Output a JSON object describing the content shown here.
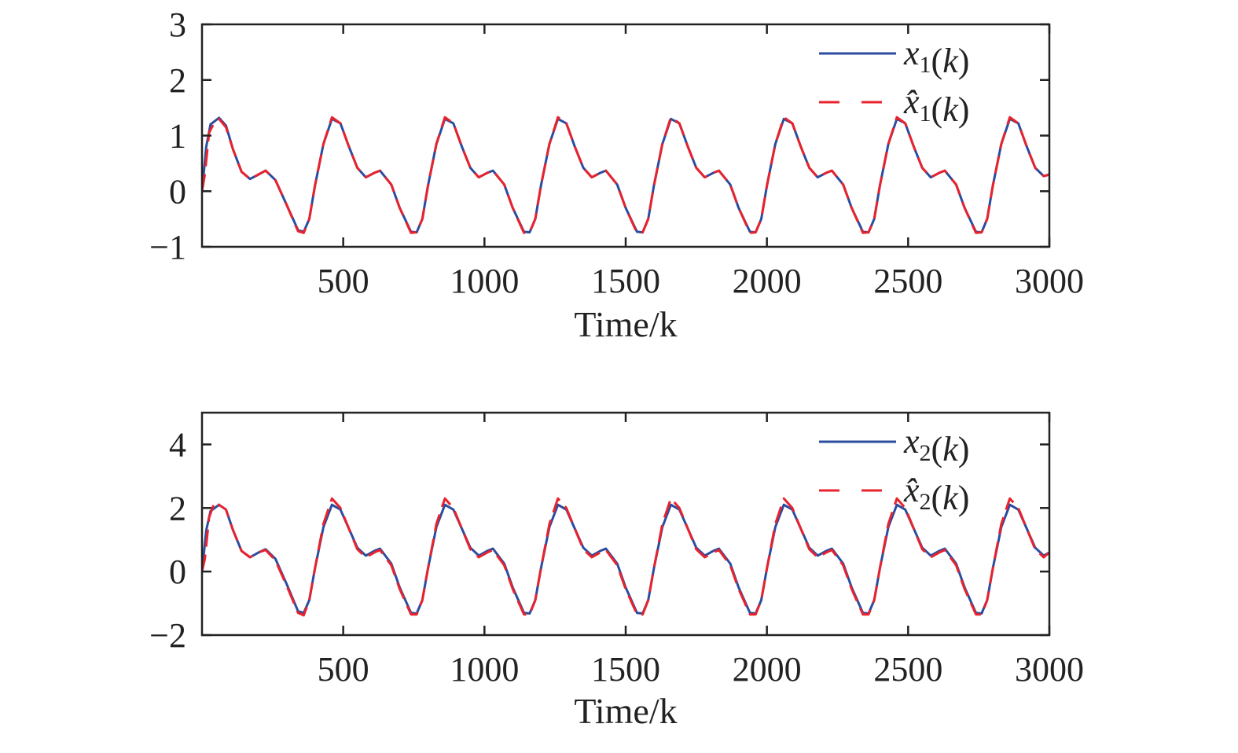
{
  "colors": {
    "true_series": "#2b4c9f",
    "estimate_series": "#e8232d",
    "axes": "#222222"
  },
  "chart_data": [
    {
      "type": "line",
      "xlabel": "Time/k",
      "ylabel": "",
      "xlim": [
        0,
        3000
      ],
      "ylim": [
        -1,
        3
      ],
      "xticks": [
        500,
        1000,
        1500,
        2000,
        2500,
        3000
      ],
      "xtick_labels": [
        "500",
        "1000",
        "1500",
        "2000",
        "2500",
        "3000"
      ],
      "yticks": [
        -1,
        0,
        1,
        2,
        3
      ],
      "ytick_labels": [
        "−1",
        "0",
        "1",
        "2",
        "3"
      ],
      "grid": false,
      "legend_position": "top-right",
      "series": [
        {
          "name": "x1(k)",
          "legend_var": "x",
          "legend_sub": "1",
          "legend_arg": "(k)",
          "style": "solid",
          "color": "#2b4c9f",
          "x": [
            0,
            15,
            30,
            60,
            85,
            110,
            140,
            170,
            200,
            225,
            260,
            300,
            340,
            360,
            380,
            400,
            430,
            460,
            490,
            520,
            550,
            580,
            610,
            630,
            670,
            700,
            740,
            760,
            780,
            800,
            830,
            860,
            890,
            920,
            950,
            980,
            1010,
            1030,
            1070,
            1100,
            1140,
            1160,
            1180,
            1200,
            1230,
            1260,
            1290,
            1320,
            1350,
            1380,
            1410,
            1430,
            1470,
            1500,
            1540,
            1560,
            1580,
            1600,
            1630,
            1660,
            1690,
            1720,
            1750,
            1780,
            1810,
            1830,
            1870,
            1900,
            1940,
            1960,
            1980,
            2000,
            2030,
            2060,
            2090,
            2120,
            2150,
            2180,
            2210,
            2230,
            2270,
            2300,
            2340,
            2360,
            2380,
            2400,
            2430,
            2460,
            2490,
            2520,
            2550,
            2580,
            2610,
            2630,
            2670,
            2700,
            2740,
            2760,
            2780,
            2800,
            2830,
            2860,
            2890,
            2920,
            2950,
            2980,
            3000
          ],
          "y": [
            0.0,
            0.8,
            1.2,
            1.32,
            1.18,
            0.75,
            0.35,
            0.22,
            0.3,
            0.37,
            0.2,
            -0.25,
            -0.7,
            -0.73,
            -0.5,
            0.1,
            0.85,
            1.3,
            1.22,
            0.8,
            0.42,
            0.25,
            0.33,
            0.37,
            0.12,
            -0.3,
            -0.73,
            -0.74,
            -0.5,
            0.1,
            0.85,
            1.3,
            1.22,
            0.8,
            0.42,
            0.25,
            0.33,
            0.37,
            0.12,
            -0.3,
            -0.73,
            -0.74,
            -0.5,
            0.1,
            0.85,
            1.3,
            1.22,
            0.8,
            0.42,
            0.25,
            0.33,
            0.37,
            0.12,
            -0.3,
            -0.73,
            -0.74,
            -0.5,
            0.1,
            0.85,
            1.3,
            1.22,
            0.8,
            0.42,
            0.25,
            0.33,
            0.37,
            0.12,
            -0.3,
            -0.73,
            -0.74,
            -0.5,
            0.1,
            0.85,
            1.3,
            1.22,
            0.8,
            0.42,
            0.25,
            0.33,
            0.37,
            0.12,
            -0.3,
            -0.73,
            -0.74,
            -0.5,
            0.1,
            0.85,
            1.3,
            1.22,
            0.8,
            0.42,
            0.25,
            0.33,
            0.37,
            0.12,
            -0.3,
            -0.73,
            -0.74,
            -0.5,
            0.1,
            0.85,
            1.3,
            1.22,
            0.8,
            0.42,
            0.27,
            0.3
          ]
        },
        {
          "name": "x̂1(k)",
          "legend_var": "x̂",
          "legend_sub": "1",
          "legend_arg": "(k)",
          "style": "dashed",
          "color": "#e8232d",
          "x": [
            0,
            10,
            25,
            45,
            60,
            85,
            110,
            140,
            170,
            200,
            225,
            260,
            300,
            340,
            360,
            380,
            400,
            430,
            460,
            490,
            520,
            550,
            580,
            610,
            630,
            670,
            700,
            740,
            760,
            780,
            800,
            830,
            860,
            890,
            920,
            950,
            980,
            1010,
            1030,
            1070,
            1100,
            1140,
            1160,
            1180,
            1200,
            1230,
            1260,
            1290,
            1320,
            1350,
            1380,
            1410,
            1430,
            1470,
            1500,
            1540,
            1560,
            1580,
            1600,
            1630,
            1660,
            1690,
            1720,
            1750,
            1780,
            1810,
            1830,
            1870,
            1900,
            1940,
            1960,
            1980,
            2000,
            2030,
            2060,
            2090,
            2120,
            2150,
            2180,
            2210,
            2230,
            2270,
            2300,
            2340,
            2360,
            2380,
            2400,
            2430,
            2460,
            2490,
            2520,
            2550,
            2580,
            2610,
            2630,
            2670,
            2700,
            2740,
            2760,
            2780,
            2800,
            2830,
            2860,
            2890,
            2920,
            2950,
            2980,
            3000
          ],
          "y": [
            0.0,
            0.3,
            1.05,
            1.25,
            1.3,
            1.15,
            0.75,
            0.35,
            0.22,
            0.3,
            0.37,
            0.2,
            -0.25,
            -0.72,
            -0.75,
            -0.5,
            0.1,
            0.85,
            1.33,
            1.22,
            0.8,
            0.42,
            0.25,
            0.33,
            0.37,
            0.12,
            -0.3,
            -0.75,
            -0.74,
            -0.5,
            0.1,
            0.85,
            1.33,
            1.22,
            0.8,
            0.42,
            0.25,
            0.33,
            0.37,
            0.12,
            -0.3,
            -0.75,
            -0.74,
            -0.5,
            0.1,
            0.85,
            1.33,
            1.22,
            0.8,
            0.42,
            0.25,
            0.33,
            0.37,
            0.12,
            -0.3,
            -0.75,
            -0.74,
            -0.5,
            0.1,
            0.85,
            1.33,
            1.22,
            0.8,
            0.42,
            0.25,
            0.33,
            0.37,
            0.12,
            -0.3,
            -0.75,
            -0.74,
            -0.5,
            0.1,
            0.85,
            1.33,
            1.22,
            0.8,
            0.42,
            0.25,
            0.33,
            0.37,
            0.12,
            -0.3,
            -0.75,
            -0.74,
            -0.5,
            0.1,
            0.85,
            1.33,
            1.22,
            0.8,
            0.42,
            0.25,
            0.33,
            0.37,
            0.12,
            -0.3,
            -0.75,
            -0.74,
            -0.5,
            0.1,
            0.85,
            1.33,
            1.22,
            0.8,
            0.42,
            0.27,
            0.3
          ]
        }
      ]
    },
    {
      "type": "line",
      "xlabel": "Time/k",
      "ylabel": "",
      "xlim": [
        0,
        3000
      ],
      "ylim": [
        -2,
        5
      ],
      "xticks": [
        500,
        1000,
        1500,
        2000,
        2500,
        3000
      ],
      "xtick_labels": [
        "500",
        "1000",
        "1500",
        "2000",
        "2500",
        "3000"
      ],
      "yticks": [
        -2,
        0,
        2,
        4
      ],
      "ytick_labels": [
        "−2",
        "0",
        "2",
        "4"
      ],
      "grid": false,
      "legend_position": "top-right",
      "series": [
        {
          "name": "x2(k)",
          "legend_var": "x",
          "legend_sub": "2",
          "legend_arg": "(k)",
          "style": "solid",
          "color": "#2b4c9f",
          "x": [
            0,
            15,
            30,
            60,
            85,
            110,
            140,
            170,
            200,
            225,
            260,
            300,
            340,
            360,
            380,
            400,
            430,
            460,
            490,
            520,
            550,
            580,
            610,
            630,
            670,
            700,
            740,
            760,
            780,
            800,
            830,
            860,
            890,
            920,
            950,
            980,
            1010,
            1030,
            1070,
            1100,
            1140,
            1160,
            1180,
            1200,
            1230,
            1260,
            1290,
            1320,
            1350,
            1380,
            1410,
            1430,
            1470,
            1500,
            1540,
            1560,
            1580,
            1600,
            1630,
            1660,
            1690,
            1720,
            1750,
            1780,
            1810,
            1830,
            1870,
            1900,
            1940,
            1960,
            1980,
            2000,
            2030,
            2060,
            2090,
            2120,
            2150,
            2180,
            2210,
            2230,
            2270,
            2300,
            2340,
            2360,
            2380,
            2400,
            2430,
            2460,
            2490,
            2520,
            2550,
            2580,
            2610,
            2630,
            2670,
            2700,
            2740,
            2760,
            2780,
            2800,
            2830,
            2860,
            2890,
            2920,
            2950,
            2980,
            3000
          ],
          "y": [
            0.0,
            1.3,
            1.9,
            2.1,
            1.95,
            1.3,
            0.65,
            0.45,
            0.6,
            0.7,
            0.4,
            -0.4,
            -1.25,
            -1.3,
            -0.9,
            0.1,
            1.4,
            2.1,
            1.95,
            1.35,
            0.75,
            0.5,
            0.65,
            0.72,
            0.25,
            -0.5,
            -1.3,
            -1.32,
            -0.9,
            0.1,
            1.4,
            2.1,
            1.95,
            1.35,
            0.75,
            0.5,
            0.65,
            0.72,
            0.25,
            -0.5,
            -1.3,
            -1.32,
            -0.9,
            0.1,
            1.4,
            2.1,
            1.95,
            1.35,
            0.75,
            0.5,
            0.65,
            0.72,
            0.25,
            -0.5,
            -1.3,
            -1.32,
            -0.9,
            0.1,
            1.4,
            2.1,
            1.95,
            1.35,
            0.75,
            0.5,
            0.65,
            0.72,
            0.25,
            -0.5,
            -1.3,
            -1.32,
            -0.9,
            0.1,
            1.4,
            2.1,
            1.95,
            1.35,
            0.75,
            0.5,
            0.65,
            0.72,
            0.25,
            -0.5,
            -1.3,
            -1.32,
            -0.9,
            0.1,
            1.4,
            2.1,
            1.95,
            1.35,
            0.75,
            0.5,
            0.65,
            0.72,
            0.25,
            -0.5,
            -1.3,
            -1.32,
            -0.9,
            0.1,
            1.4,
            2.1,
            1.95,
            1.35,
            0.75,
            0.5,
            0.6
          ]
        },
        {
          "name": "x̂2(k)",
          "legend_var": "x̂",
          "legend_sub": "2",
          "legend_arg": "(k)",
          "style": "dashed",
          "color": "#e8232d",
          "x": [
            0,
            10,
            25,
            45,
            60,
            85,
            110,
            140,
            170,
            200,
            225,
            260,
            300,
            340,
            360,
            380,
            400,
            430,
            460,
            490,
            520,
            550,
            580,
            610,
            630,
            670,
            700,
            740,
            760,
            780,
            800,
            830,
            860,
            890,
            920,
            950,
            980,
            1010,
            1030,
            1070,
            1100,
            1140,
            1160,
            1180,
            1200,
            1230,
            1260,
            1290,
            1320,
            1350,
            1380,
            1410,
            1430,
            1470,
            1500,
            1540,
            1560,
            1580,
            1600,
            1630,
            1660,
            1690,
            1720,
            1750,
            1780,
            1810,
            1830,
            1870,
            1900,
            1940,
            1960,
            1980,
            2000,
            2030,
            2060,
            2090,
            2120,
            2150,
            2180,
            2210,
            2230,
            2270,
            2300,
            2340,
            2360,
            2380,
            2400,
            2430,
            2460,
            2490,
            2520,
            2550,
            2580,
            2610,
            2630,
            2670,
            2700,
            2740,
            2760,
            2780,
            2800,
            2830,
            2860,
            2890,
            2920,
            2950,
            2980,
            3000
          ],
          "y": [
            0.0,
            0.4,
            1.7,
            2.2,
            2.1,
            1.95,
            1.3,
            0.65,
            0.45,
            0.6,
            0.68,
            0.35,
            -0.45,
            -1.3,
            -1.38,
            -0.9,
            0.1,
            1.5,
            2.3,
            2.0,
            1.35,
            0.7,
            0.45,
            0.6,
            0.68,
            0.2,
            -0.55,
            -1.35,
            -1.35,
            -0.9,
            0.1,
            1.5,
            2.3,
            2.0,
            1.35,
            0.7,
            0.45,
            0.6,
            0.68,
            0.2,
            -0.55,
            -1.35,
            -1.35,
            -0.9,
            0.1,
            1.5,
            2.3,
            2.0,
            1.35,
            0.7,
            0.45,
            0.6,
            0.68,
            0.2,
            -0.55,
            -1.35,
            -1.35,
            -0.9,
            0.1,
            1.5,
            2.3,
            2.0,
            1.35,
            0.7,
            0.45,
            0.6,
            0.68,
            0.2,
            -0.55,
            -1.35,
            -1.35,
            -0.9,
            0.1,
            1.5,
            2.3,
            2.0,
            1.35,
            0.7,
            0.45,
            0.6,
            0.68,
            0.2,
            -0.55,
            -1.35,
            -1.35,
            -0.9,
            0.1,
            1.5,
            2.3,
            2.0,
            1.35,
            0.7,
            0.45,
            0.6,
            0.68,
            0.2,
            -0.55,
            -1.35,
            -1.35,
            -0.9,
            0.1,
            1.5,
            2.3,
            2.0,
            1.35,
            0.7,
            0.45,
            0.6
          ]
        }
      ]
    }
  ]
}
